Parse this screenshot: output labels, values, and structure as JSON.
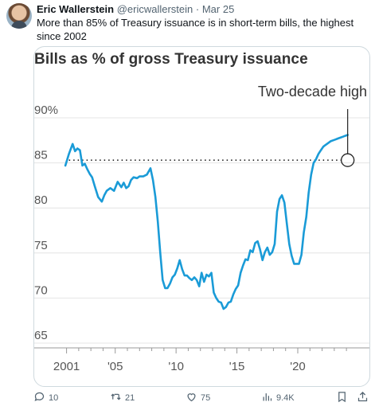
{
  "tweet": {
    "author_name": "Eric Wallerstein",
    "handle": "@ericwallerstein",
    "separator": "·",
    "date": "Mar 25",
    "text": "More than 85% of Treasury issuance is in short-term bills, the highest since 2002"
  },
  "actions": {
    "replies": "10",
    "retweets": "21",
    "likes": "75",
    "views": "9.4K"
  },
  "chart_data": {
    "type": "line",
    "title": "Bills as % of gross Treasury issuance",
    "annotation": "Two-decade high",
    "y_tick_labels": [
      "90%",
      "85",
      "80",
      "75",
      "70",
      "65"
    ],
    "y_ticks": [
      90,
      85,
      80,
      75,
      70,
      65
    ],
    "x_tick_labels": [
      "2001",
      "'05",
      "'10",
      "'15",
      "'20"
    ],
    "x_ticks": [
      2001,
      2005,
      2010,
      2015,
      2020
    ],
    "xlim": [
      2000.7,
      2025.3
    ],
    "ylim": [
      65,
      91.5
    ],
    "reference_line": 85.3,
    "line_color": "#1a9bd7",
    "series": [
      {
        "x": [
          2000.9,
          2001.2,
          2001.5,
          2001.7,
          2001.9,
          2002.1,
          2002.3,
          2002.5,
          2002.7,
          2002.9,
          2003.1,
          2003.3,
          2003.6,
          2003.9,
          2004.1,
          2004.3,
          2004.6,
          2004.9,
          2005.2,
          2005.5,
          2005.7,
          2005.9,
          2006.1,
          2006.3,
          2006.5,
          2006.8,
          2007.0,
          2007.3,
          2007.6,
          2007.9,
          2008.1,
          2008.3,
          2008.5,
          2008.7,
          2008.9,
          2009.1,
          2009.3,
          2009.5,
          2009.7,
          2009.9,
          2010.1,
          2010.3,
          2010.5,
          2010.7,
          2010.9,
          2011.1,
          2011.3,
          2011.5,
          2011.7,
          2011.9,
          2012.1,
          2012.3,
          2012.5,
          2012.7,
          2012.9,
          2013.1,
          2013.3,
          2013.5,
          2013.7,
          2013.9,
          2014.1,
          2014.3,
          2014.5,
          2014.7,
          2014.9,
          2015.1,
          2015.3,
          2015.5,
          2015.7,
          2015.9,
          2016.1,
          2016.3,
          2016.5,
          2016.7,
          2016.9,
          2017.1,
          2017.3,
          2017.5,
          2017.7,
          2017.9,
          2018.1,
          2018.3,
          2018.5,
          2018.7,
          2018.9,
          2019.1,
          2019.3,
          2019.5,
          2019.7,
          2019.9,
          2020.1,
          2020.3,
          2020.5,
          2020.7,
          2020.9,
          2021.1,
          2021.3,
          2021.5,
          2021.7,
          2021.9,
          2022.1,
          2022.3,
          2022.5,
          2022.7,
          2022.9,
          2023.1,
          2023.3,
          2023.5,
          2023.7,
          2023.9,
          2024.1
        ],
        "y": [
          84.7,
          86.0,
          87.1,
          86.3,
          86.6,
          86.4,
          84.7,
          84.9,
          84.3,
          83.8,
          83.4,
          82.5,
          81.2,
          80.7,
          81.4,
          81.9,
          82.2,
          81.9,
          82.9,
          82.3,
          82.8,
          82.2,
          82.4,
          83.1,
          83.4,
          83.3,
          83.5,
          83.5,
          83.7,
          84.4,
          83.1,
          81.2,
          78.5,
          75.0,
          72.0,
          71.1,
          71.1,
          71.6,
          72.3,
          72.6,
          73.3,
          74.2,
          73.2,
          72.5,
          72.5,
          72.2,
          72.0,
          72.3,
          72.0,
          71.3,
          72.8,
          71.8,
          72.6,
          72.4,
          72.8,
          70.6,
          70.0,
          69.6,
          69.5,
          68.8,
          69.0,
          69.5,
          69.6,
          70.4,
          71.0,
          71.4,
          72.8,
          73.6,
          74.3,
          74.2,
          75.3,
          75.1,
          76.1,
          76.3,
          75.4,
          74.2,
          75.1,
          75.6,
          74.8,
          75.1,
          76.0,
          79.6,
          81.0,
          81.4,
          80.6,
          78.3,
          76.0,
          74.7,
          73.8,
          73.8,
          73.8,
          74.8,
          77.3,
          79.0,
          81.7,
          83.7,
          85.0,
          85.4,
          86.0,
          86.4,
          86.8,
          87.0,
          87.2,
          87.4,
          87.5,
          87.6,
          87.7,
          87.8,
          87.9,
          88.0,
          88.1
        ]
      }
    ]
  }
}
